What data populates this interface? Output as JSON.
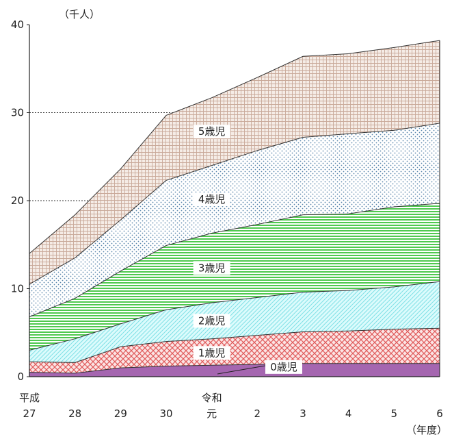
{
  "chart_data": {
    "type": "area",
    "stacked": true,
    "y_unit": "（千人）",
    "x_unit": "（年度）",
    "ylim": [
      0,
      40
    ],
    "yticks": [
      0,
      10,
      20,
      30,
      40
    ],
    "grid": "dotted horizontal lines at 20 and 30 (left of data area)",
    "x_labels": [
      {
        "era": "平成",
        "year": "27"
      },
      {
        "era": "",
        "year": "28"
      },
      {
        "era": "",
        "year": "29"
      },
      {
        "era": "",
        "year": "30"
      },
      {
        "era": "令和",
        "year": "元"
      },
      {
        "era": "",
        "year": "2"
      },
      {
        "era": "",
        "year": "3"
      },
      {
        "era": "",
        "year": "4"
      },
      {
        "era": "",
        "year": "5"
      },
      {
        "era": "",
        "year": "6"
      }
    ],
    "cumulative_top": [
      [
        0.5,
        0.4,
        1.0,
        1.2,
        1.3,
        1.4,
        1.5,
        1.5,
        1.5,
        1.5
      ],
      [
        1.7,
        1.6,
        3.4,
        4.0,
        4.3,
        4.7,
        5.1,
        5.2,
        5.4,
        5.5
      ],
      [
        3.0,
        4.3,
        6.0,
        7.6,
        8.4,
        9.0,
        9.6,
        9.8,
        10.2,
        10.8
      ],
      [
        6.8,
        8.9,
        12.0,
        14.9,
        16.3,
        17.3,
        18.4,
        18.5,
        19.3,
        19.7
      ],
      [
        10.5,
        13.5,
        17.8,
        22.3,
        24.0,
        25.7,
        27.2,
        27.6,
        28.0,
        28.8
      ],
      [
        14.0,
        18.4,
        23.6,
        29.7,
        31.7,
        34.0,
        36.4,
        36.7,
        37.4,
        38.2
      ]
    ],
    "series": [
      {
        "name": "0歳児",
        "values": [
          0.5,
          0.4,
          1.0,
          1.2,
          1.3,
          1.4,
          1.5,
          1.5,
          1.5,
          1.5
        ],
        "color": "#b784bf"
      },
      {
        "name": "1歳児",
        "values": [
          1.2,
          1.2,
          2.4,
          2.8,
          3.0,
          3.3,
          3.6,
          3.7,
          3.9,
          4.0
        ],
        "color": "#f0a9a9"
      },
      {
        "name": "2歳児",
        "values": [
          1.3,
          2.7,
          2.6,
          3.6,
          4.1,
          4.3,
          4.5,
          4.6,
          4.8,
          5.3
        ],
        "color": "#b9f0f2"
      },
      {
        "name": "3歳児",
        "values": [
          3.8,
          4.6,
          6.0,
          7.3,
          7.9,
          8.3,
          8.8,
          8.7,
          9.1,
          8.9
        ],
        "color": "#6fd66f"
      },
      {
        "name": "4歳児",
        "values": [
          3.7,
          4.6,
          5.8,
          7.4,
          7.7,
          8.4,
          8.8,
          9.1,
          8.7,
          9.1
        ],
        "color": "#a9c5e0"
      },
      {
        "name": "5歳児",
        "values": [
          3.5,
          4.9,
          5.8,
          7.4,
          7.7,
          8.3,
          9.2,
          9.1,
          9.4,
          9.4
        ],
        "color": "#e6cfc6"
      }
    ]
  }
}
